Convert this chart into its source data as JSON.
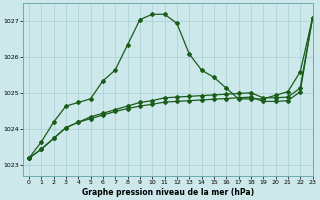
{
  "xlabel": "Graphe pression niveau de la mer (hPa)",
  "background_color": "#cce8ea",
  "grid_color": "#a8cfd2",
  "line_color": "#1a5c1a",
  "ylim": [
    1022.7,
    1027.5
  ],
  "xlim": [
    -0.5,
    23
  ],
  "yticks": [
    1023,
    1024,
    1025,
    1026,
    1027
  ],
  "xticks": [
    0,
    1,
    2,
    3,
    4,
    5,
    6,
    7,
    8,
    9,
    10,
    11,
    12,
    13,
    14,
    15,
    16,
    17,
    18,
    19,
    20,
    21,
    22,
    23
  ],
  "series_peak": [
    1023.2,
    1023.65,
    1024.2,
    1024.65,
    1024.75,
    1024.85,
    1025.35,
    1025.65,
    1026.35,
    1027.05,
    1027.2,
    1027.2,
    1026.95,
    1026.1,
    1025.65,
    1025.45,
    1025.15,
    1024.85,
    1024.85,
    1024.85,
    1024.95,
    1025.05,
    1025.6,
    1027.1
  ],
  "series_linear": [
    1023.2,
    1023.45,
    1023.75,
    1024.05,
    1024.2,
    1024.35,
    1024.45,
    1024.55,
    1024.65,
    1024.75,
    1024.8,
    1024.88,
    1024.9,
    1024.92,
    1024.94,
    1024.96,
    1024.98,
    1025.0,
    1025.02,
    1024.88,
    1024.88,
    1024.9,
    1025.15,
    1027.1
  ],
  "series_flat": [
    1023.2,
    1023.45,
    1023.75,
    1024.05,
    1024.2,
    1024.3,
    1024.4,
    1024.5,
    1024.58,
    1024.65,
    1024.7,
    1024.76,
    1024.78,
    1024.8,
    1024.82,
    1024.84,
    1024.86,
    1024.88,
    1024.9,
    1024.78,
    1024.78,
    1024.8,
    1025.05,
    1027.1
  ]
}
